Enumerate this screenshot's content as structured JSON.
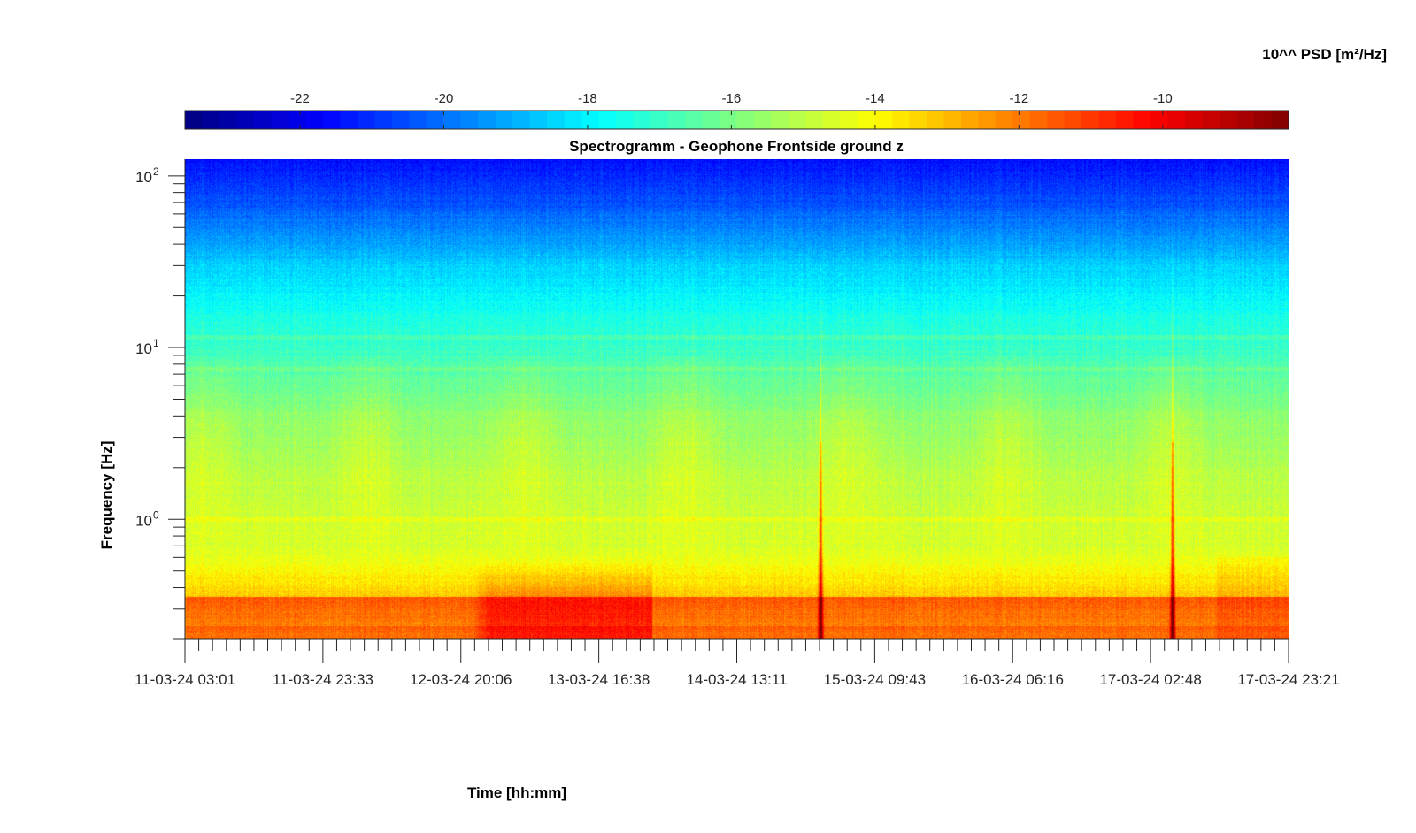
{
  "chart_data": {
    "type": "heatmap",
    "title": "Spectrogramm - Geophone Frontside ground z",
    "xlabel": "Time [hh:mm]",
    "ylabel": "Frequency [Hz]",
    "colorbar": {
      "label": "10^^ PSD [m²/Hz]",
      "range": [
        -23.6,
        -8.25
      ],
      "ticks": [
        -22,
        -20,
        -18,
        -16,
        -14,
        -12,
        -10
      ],
      "ticklabels": [
        "-22",
        "-20",
        "-18",
        "-16",
        "-14",
        "-12",
        "-10"
      ],
      "colormap": "jet",
      "placement": "top"
    },
    "x": {
      "ticklabels": [
        "11-03-24 03:01",
        "11-03-24 23:33",
        "12-03-24 20:06",
        "13-03-24 16:38",
        "14-03-24 13:11",
        "15-03-24 09:43",
        "16-03-24 06:16",
        "17-03-24 02:48",
        "17-03-24 23:21"
      ],
      "minor_per_major": 10,
      "range_days": [
        0,
        6.8455
      ]
    },
    "y": {
      "scale": "log",
      "range": [
        0.2,
        125
      ],
      "ticks": [
        1,
        10,
        100
      ],
      "ticklabels": [
        {
          "base": "10",
          "exp": "0"
        },
        {
          "base": "10",
          "exp": "1"
        },
        {
          "base": "10",
          "exp": "2"
        }
      ]
    },
    "features": {
      "transients_days": [
        3.943,
        6.127
      ],
      "transient_max_hz": 60,
      "high_energy_band": {
        "start_days": 1.78,
        "end_days": 2.9,
        "below_hz": 0.6
      },
      "spectral_lines_hz": [
        1.0,
        7.5,
        11.5
      ]
    }
  }
}
